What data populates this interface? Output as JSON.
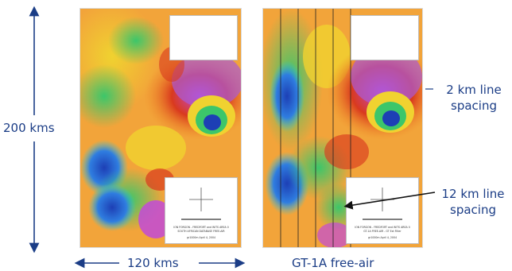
{
  "figure": {
    "height_label": "200 kms",
    "width_label": "120 kms",
    "right_map_title": "GT-1A free-air",
    "annotation_2km": [
      "2 km line",
      "spacing"
    ],
    "annotation_12km": [
      "12 km line",
      "spacing"
    ],
    "colors": {
      "label_blue": "#1b3d86",
      "low": "#1d3fb5",
      "mid": "#3cc66a",
      "high": "#f0d230",
      "very_high": "#d93a1e",
      "peak": "#c24ad8"
    }
  },
  "left_map": {
    "caption_lines": [
      "ION FORGON - FREDFORT and WITS AREA 0",
      "SOUTH AFRICAN DATABASE FREE-AIR",
      "gr1000m  April 4, 2004"
    ]
  },
  "right_map": {
    "caption_lines": [
      "ION FORGON - FREDFORT and WITS AREA 0",
      "GT-1A FREE-AIR - GT Ext Filter",
      "gr1000m  April 4, 2004"
    ]
  }
}
